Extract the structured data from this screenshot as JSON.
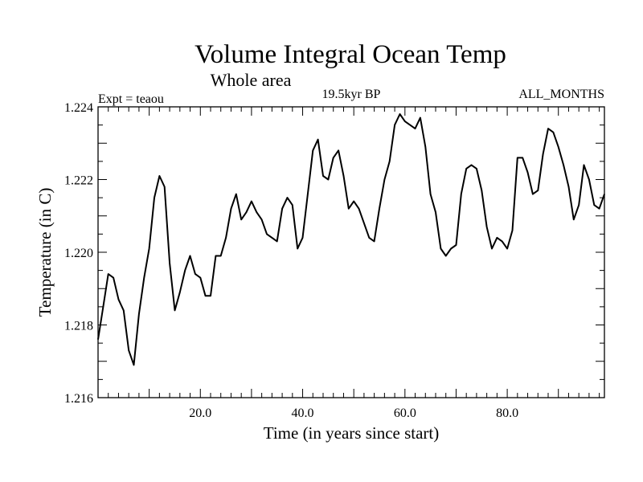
{
  "chart_data": {
    "type": "line",
    "title": "Volume Integral Ocean Temp",
    "subtitle": "Whole area",
    "annotations": {
      "left": "Expt = teaou",
      "center": "19.5kyr BP",
      "right": "ALL_MONTHS"
    },
    "xlabel": "Time (in years since start)",
    "ylabel": "Temperature (in C)",
    "xlim": [
      0,
      99
    ],
    "ylim": [
      1.216,
      1.224
    ],
    "xticks": [
      20,
      40,
      60,
      80
    ],
    "xtick_labels": [
      "20.0",
      "40.0",
      "60.0",
      "80.0"
    ],
    "yticks": [
      1.216,
      1.218,
      1.22,
      1.222,
      1.224
    ],
    "ytick_labels": [
      "1.216",
      "1.218",
      "1.220",
      "1.222",
      "1.224"
    ],
    "grid": false,
    "series": [
      {
        "name": "Temperature",
        "x": [
          0,
          1,
          2,
          3,
          4,
          5,
          6,
          7,
          8,
          9,
          10,
          11,
          12,
          13,
          14,
          15,
          16,
          17,
          18,
          19,
          20,
          21,
          22,
          23,
          24,
          25,
          26,
          27,
          28,
          29,
          30,
          31,
          32,
          33,
          34,
          35,
          36,
          37,
          38,
          39,
          40,
          41,
          42,
          43,
          44,
          45,
          46,
          47,
          48,
          49,
          50,
          51,
          52,
          53,
          54,
          55,
          56,
          57,
          58,
          59,
          60,
          61,
          62,
          63,
          64,
          65,
          66,
          67,
          68,
          69,
          70,
          71,
          72,
          73,
          74,
          75,
          76,
          77,
          78,
          79,
          80,
          81,
          82,
          83,
          84,
          85,
          86,
          87,
          88,
          89,
          90,
          91,
          92,
          93,
          94,
          95,
          96,
          97,
          98,
          99
        ],
        "values": [
          1.2176,
          1.2185,
          1.2194,
          1.2193,
          1.2187,
          1.2184,
          1.2173,
          1.2169,
          1.2183,
          1.2193,
          1.2201,
          1.2215,
          1.2221,
          1.2218,
          1.2197,
          1.2184,
          1.2189,
          1.2195,
          1.2199,
          1.2194,
          1.2193,
          1.2188,
          1.2188,
          1.2199,
          1.2199,
          1.2204,
          1.2212,
          1.2216,
          1.2209,
          1.2211,
          1.2214,
          1.2211,
          1.2209,
          1.2205,
          1.2204,
          1.2203,
          1.2212,
          1.2215,
          1.2213,
          1.2201,
          1.2204,
          1.2216,
          1.2228,
          1.2231,
          1.2221,
          1.222,
          1.2226,
          1.2228,
          1.2221,
          1.2212,
          1.2214,
          1.2212,
          1.2208,
          1.2204,
          1.2203,
          1.2212,
          1.222,
          1.2225,
          1.2235,
          1.2238,
          1.2236,
          1.2235,
          1.2234,
          1.2237,
          1.2229,
          1.2216,
          1.2211,
          1.2201,
          1.2199,
          1.2201,
          1.2202,
          1.2216,
          1.2223,
          1.2224,
          1.2223,
          1.2217,
          1.2207,
          1.2201,
          1.2204,
          1.2203,
          1.2201,
          1.2206,
          1.2226,
          1.2226,
          1.2222,
          1.2216,
          1.2217,
          1.2227,
          1.2234,
          1.2233,
          1.2229,
          1.2224,
          1.2218,
          1.2209,
          1.2213,
          1.2224,
          1.222,
          1.2213,
          1.2212,
          1.2216
        ]
      }
    ]
  }
}
